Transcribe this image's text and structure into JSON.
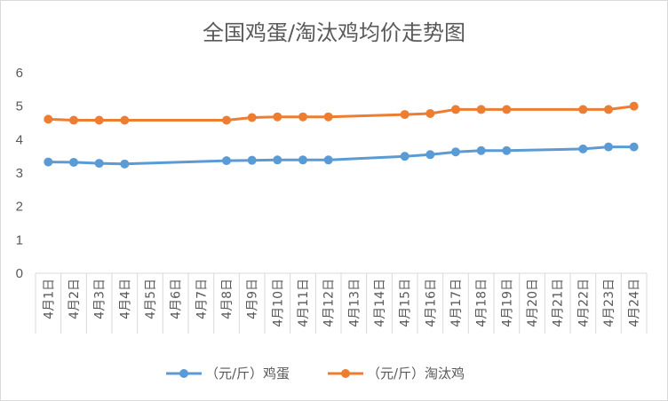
{
  "chart_data": {
    "type": "line",
    "title": "全国鸡蛋/淘汰鸡均价走势图",
    "categories": [
      "4月1日",
      "4月2日",
      "4月3日",
      "4月4日",
      "4月5日",
      "4月6日",
      "4月7日",
      "4月8日",
      "4月9日",
      "4月10日",
      "4月11日",
      "4月12日",
      "4月13日",
      "4月14日",
      "4月15日",
      "4月16日",
      "4月17日",
      "4月18日",
      "4月19日",
      "4月20日",
      "4月21日",
      "4月22日",
      "4月23日",
      "4月24日"
    ],
    "series": [
      {
        "name": "（元/斤）鸡蛋",
        "color": "#5b9bd5",
        "values": [
          3.33,
          3.32,
          3.29,
          3.27,
          null,
          null,
          null,
          3.37,
          3.38,
          3.39,
          3.39,
          3.39,
          null,
          null,
          3.5,
          3.55,
          3.63,
          3.67,
          3.67,
          null,
          null,
          3.72,
          3.78,
          3.78
        ]
      },
      {
        "name": "（元/斤）淘汰鸡",
        "color": "#ed7d31",
        "values": [
          4.61,
          4.58,
          4.58,
          4.58,
          null,
          null,
          null,
          4.58,
          4.66,
          4.68,
          4.68,
          4.68,
          null,
          null,
          4.75,
          4.78,
          4.9,
          4.9,
          4.9,
          null,
          null,
          4.9,
          4.9,
          5.0
        ]
      }
    ],
    "xlabel": "",
    "ylabel": "",
    "ylim": [
      0,
      6
    ],
    "yticks": [
      "0",
      "1",
      "2",
      "3",
      "4",
      "5",
      "6"
    ],
    "grid": false,
    "legend": "bottom"
  }
}
